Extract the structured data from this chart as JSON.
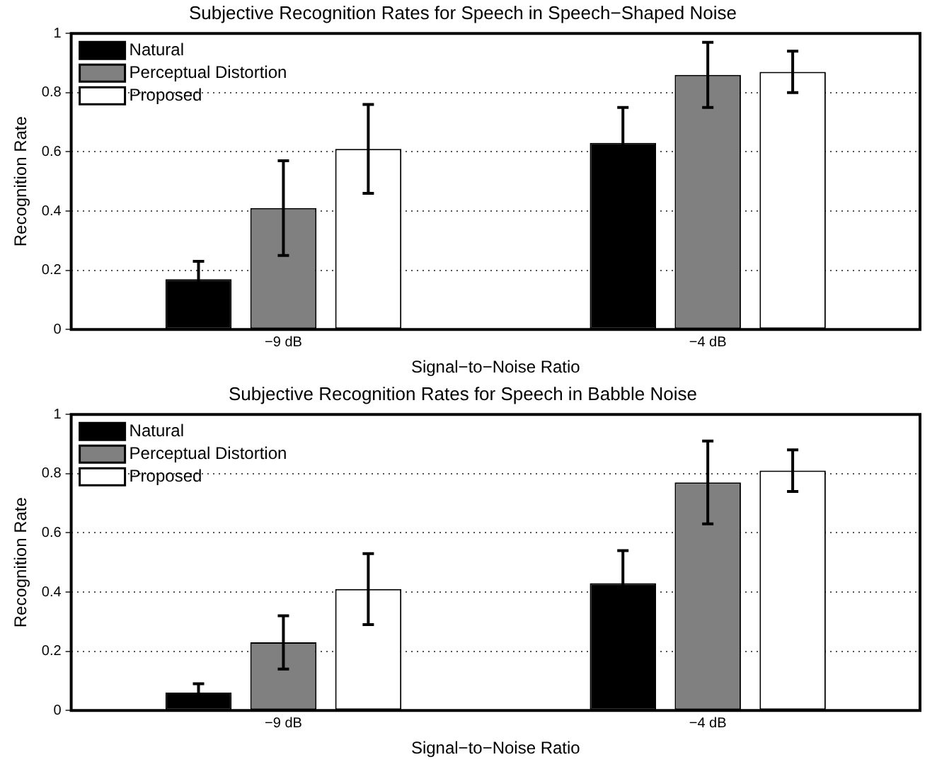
{
  "chart_data": [
    {
      "type": "bar",
      "title": "Subjective Recognition Rates for Speech in Speech−Shaped Noise",
      "xlabel": "Signal−to−Noise Ratio",
      "ylabel": "Recognition Rate",
      "categories": [
        "−9 dB",
        "−4 dB"
      ],
      "series": [
        {
          "name": "Natural",
          "color": "#000000",
          "values": [
            0.17,
            0.63
          ],
          "errors": [
            0.06,
            0.12
          ]
        },
        {
          "name": "Perceptual Distortion",
          "color": "#808080",
          "values": [
            0.41,
            0.86
          ],
          "errors": [
            0.16,
            0.11
          ]
        },
        {
          "name": "Proposed",
          "color": "#ffffff",
          "values": [
            0.61,
            0.87
          ],
          "errors": [
            0.15,
            0.07
          ]
        }
      ],
      "ylim": [
        0,
        1
      ],
      "yticks": [
        0,
        0.2,
        0.4,
        0.6,
        0.8,
        1
      ],
      "grid": "y",
      "legend": "top left"
    },
    {
      "type": "bar",
      "title": "Subjective Recognition Rates for Speech in Babble Noise",
      "xlabel": "Signal−to−Noise Ratio",
      "ylabel": "Recognition Rate",
      "categories": [
        "−9 dB",
        "−4 dB"
      ],
      "series": [
        {
          "name": "Natural",
          "color": "#000000",
          "values": [
            0.06,
            0.43
          ],
          "errors": [
            0.03,
            0.11
          ]
        },
        {
          "name": "Perceptual Distortion",
          "color": "#808080",
          "values": [
            0.23,
            0.77
          ],
          "errors": [
            0.09,
            0.14
          ]
        },
        {
          "name": "Proposed",
          "color": "#ffffff",
          "values": [
            0.41,
            0.81
          ],
          "errors": [
            0.12,
            0.07
          ]
        }
      ],
      "ylim": [
        0,
        1
      ],
      "yticks": [
        0,
        0.2,
        0.4,
        0.6,
        0.8,
        1
      ],
      "grid": "y",
      "legend": "top left"
    }
  ]
}
